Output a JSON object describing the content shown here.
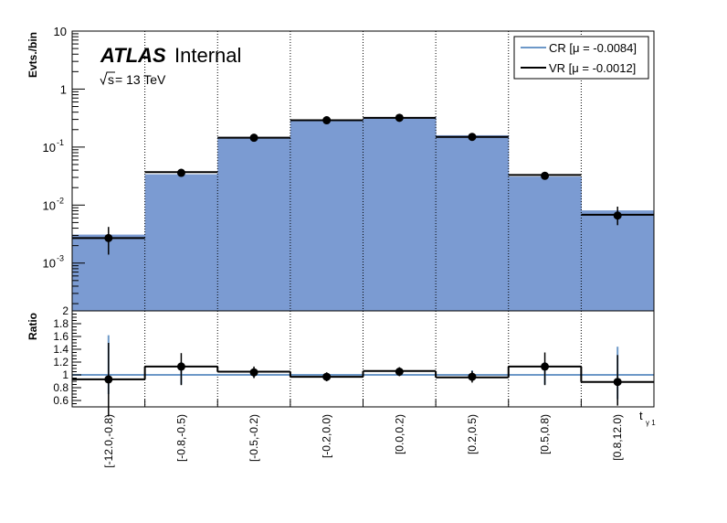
{
  "chart_data": {
    "type": "histogram",
    "categories": [
      "[-12.0,-0.8)",
      "[-0.8,-0.5)",
      "[-0.5,-0.2)",
      "[-0.2,0.0)",
      "[0.0,0.2)",
      "[0.2,0.5)",
      "[0.5,0.8)",
      "[0.8,12.0)"
    ],
    "xlabel": "t",
    "xlabel_sub": "γ 1",
    "top_panel": {
      "ylabel": "Evts./bin",
      "yscale": "log",
      "ylim": [
        0.00015,
        10
      ],
      "yticks": [
        {
          "value": 0.001,
          "base": "10",
          "exp": "-3"
        },
        {
          "value": 0.01,
          "base": "10",
          "exp": "-2"
        },
        {
          "value": 0.1,
          "base": "10",
          "exp": "-1"
        },
        {
          "value": 1,
          "base": "1",
          "exp": ""
        },
        {
          "value": 10,
          "base": "10",
          "exp": ""
        }
      ],
      "series": [
        {
          "name": "CR [μ = -0.0084]",
          "style": "filled-histogram",
          "color": "#7b9bd2",
          "values": [
            0.0031,
            0.034,
            0.15,
            0.3,
            0.33,
            0.16,
            0.031,
            0.0081
          ]
        },
        {
          "name": "VR [μ = -0.0012]",
          "style": "line-histogram",
          "color": "#000000",
          "values": [
            0.0027,
            0.037,
            0.145,
            0.29,
            0.32,
            0.15,
            0.033,
            0.0068
          ]
        },
        {
          "name": "data",
          "style": "points",
          "color": "#000000",
          "values": [
            0.0027,
            0.036,
            0.145,
            0.29,
            0.32,
            0.15,
            0.032,
            0.0066
          ],
          "err_low": [
            0.0014,
            0.032,
            0.135,
            0.275,
            0.305,
            0.14,
            0.029,
            0.0045
          ],
          "err_high": [
            0.0042,
            0.04,
            0.155,
            0.305,
            0.335,
            0.16,
            0.035,
            0.0094
          ]
        }
      ]
    },
    "bottom_panel": {
      "ylabel": "Ratio",
      "ylim": [
        0.5,
        2.0
      ],
      "yticks": [
        "0.6",
        "0.8",
        "1",
        "1.2",
        "1.4",
        "1.6",
        "1.8",
        "2"
      ],
      "reference_line": 1.0,
      "ratio_line": [
        0.93,
        1.13,
        1.05,
        0.97,
        1.06,
        0.96,
        1.13,
        0.89
      ],
      "points": [
        0.93,
        1.13,
        1.04,
        0.97,
        1.05,
        0.97,
        1.13,
        0.89
      ],
      "err_low": [
        0.35,
        0.84,
        0.95,
        0.9,
        0.98,
        0.88,
        0.84,
        0.52
      ],
      "err_high": [
        1.5,
        1.34,
        1.13,
        1.04,
        1.12,
        1.06,
        1.35,
        1.31
      ],
      "cr_err_low": [
        0.7,
        0.85,
        0.96,
        0.93,
        0.99,
        0.92,
        0.85,
        0.62
      ],
      "cr_err_high": [
        1.62,
        1.2,
        1.09,
        1.03,
        1.09,
        1.07,
        1.2,
        1.44
      ]
    },
    "legend": {
      "position": "top-right",
      "entries": [
        "CR [μ = -0.0084]",
        "VR [μ = -0.0012]"
      ]
    },
    "grid": "vertical dotted lines at bin edges"
  },
  "annotations": {
    "atlas": "ATLAS",
    "internal": "Internal",
    "energy_prefix": "s",
    "energy_suffix": " = 13 TeV"
  },
  "colors": {
    "fill": "#7b9bd2",
    "cr_line": "#6d98c8",
    "line": "#000000"
  }
}
